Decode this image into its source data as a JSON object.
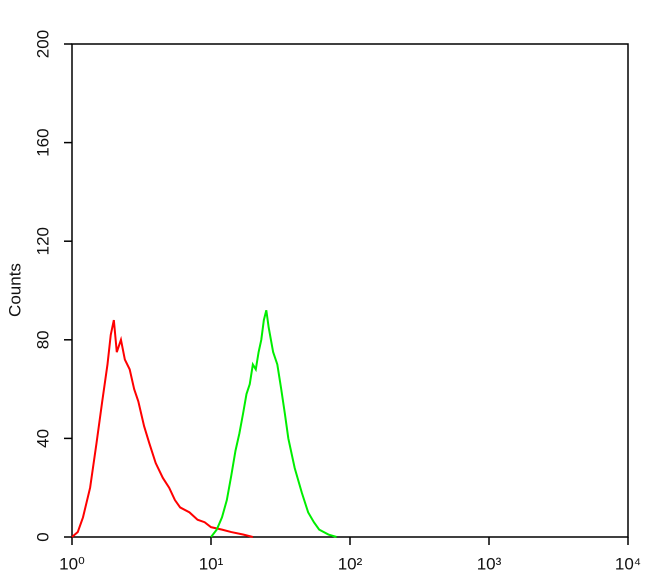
{
  "chart_data": {
    "type": "line",
    "y_label": "Counts",
    "log_x": true,
    "xlim": [
      1,
      10000
    ],
    "xticks": [
      {
        "value": 1,
        "label": "10⁰"
      },
      {
        "value": 10,
        "label": "10¹"
      },
      {
        "value": 100,
        "label": "10²"
      },
      {
        "value": 1000,
        "label": "10³"
      },
      {
        "value": 10000,
        "label": "10⁴"
      }
    ],
    "ylim": [
      0,
      200
    ],
    "yticks": [
      0,
      40,
      80,
      120,
      160,
      200
    ],
    "series": [
      {
        "name": "red",
        "color": "#ff0000",
        "x": [
          1,
          1.1,
          1.2,
          1.35,
          1.5,
          1.65,
          1.8,
          1.9,
          2.0,
          2.1,
          2.25,
          2.4,
          2.6,
          2.8,
          3.0,
          3.3,
          3.6,
          4.0,
          4.5,
          5,
          5.5,
          6,
          7,
          8,
          9,
          10,
          12,
          14,
          17,
          20
        ],
        "values": [
          0,
          2,
          8,
          20,
          38,
          55,
          70,
          82,
          88,
          75,
          80,
          72,
          68,
          60,
          55,
          45,
          38,
          30,
          24,
          20,
          15,
          12,
          10,
          7,
          6,
          4,
          3,
          2,
          1,
          0
        ]
      },
      {
        "name": "green",
        "color": "#00ee00",
        "x": [
          10,
          11,
          12,
          13,
          14,
          15,
          16,
          17,
          18,
          19,
          20,
          21,
          22,
          23,
          24,
          25,
          26,
          28,
          30,
          32,
          34,
          36,
          40,
          45,
          50,
          55,
          60,
          70,
          80
        ],
        "values": [
          0,
          3,
          8,
          15,
          25,
          35,
          42,
          50,
          58,
          62,
          70,
          68,
          75,
          80,
          88,
          92,
          85,
          75,
          70,
          60,
          50,
          40,
          28,
          18,
          10,
          6,
          3,
          1,
          0
        ]
      }
    ]
  }
}
